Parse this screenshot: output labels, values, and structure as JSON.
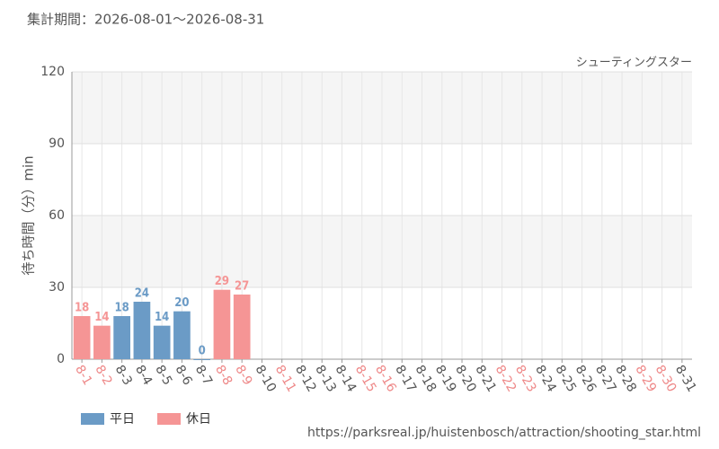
{
  "chart_data": {
    "type": "bar",
    "title": "集計期間：2026-08-01～2026-08-31",
    "subtitle": "シューティングスター",
    "y_label": "待ち時間（分）min",
    "source": "https://parksreal.jp/huistenbosch/attraction/shooting_star.html",
    "categories": [
      "8-1",
      "8-2",
      "8-3",
      "8-4",
      "8-5",
      "8-6",
      "8-7",
      "8-8",
      "8-9",
      "8-10",
      "8-11",
      "8-12",
      "8-13",
      "8-14",
      "8-15",
      "8-16",
      "8-17",
      "8-18",
      "8-19",
      "8-20",
      "8-21",
      "8-22",
      "8-23",
      "8-24",
      "8-25",
      "8-26",
      "8-27",
      "8-28",
      "8-29",
      "8-30",
      "8-31"
    ],
    "category_colors": [
      "#ee8888",
      "#ee8888",
      "#555555",
      "#555555",
      "#555555",
      "#555555",
      "#555555",
      "#ee8888",
      "#ee8888",
      "#555555",
      "#ee8888",
      "#555555",
      "#555555",
      "#555555",
      "#ee8888",
      "#ee8888",
      "#555555",
      "#555555",
      "#555555",
      "#555555",
      "#555555",
      "#ee8888",
      "#ee8888",
      "#555555",
      "#555555",
      "#555555",
      "#555555",
      "#555555",
      "#ee8888",
      "#ee8888",
      "#555555"
    ],
    "series": [
      {
        "name": "平日",
        "color": "#6b9bc6",
        "values": [
          null,
          null,
          18,
          24,
          14,
          20,
          0,
          null,
          null,
          null,
          null,
          null,
          null,
          null,
          null,
          null,
          null,
          null,
          null,
          null,
          null,
          null,
          null,
          null,
          null,
          null,
          null,
          null,
          null,
          null,
          null
        ]
      },
      {
        "name": "休日",
        "color": "#f59595",
        "values": [
          18,
          14,
          null,
          null,
          null,
          null,
          null,
          29,
          27,
          null,
          null,
          null,
          null,
          null,
          null,
          null,
          null,
          null,
          null,
          null,
          null,
          null,
          null,
          null,
          null,
          null,
          null,
          null,
          null,
          null,
          null
        ]
      }
    ],
    "ylim": [
      0,
      120
    ],
    "yticks": [
      0,
      30,
      60,
      90,
      120
    ],
    "grid": true
  }
}
